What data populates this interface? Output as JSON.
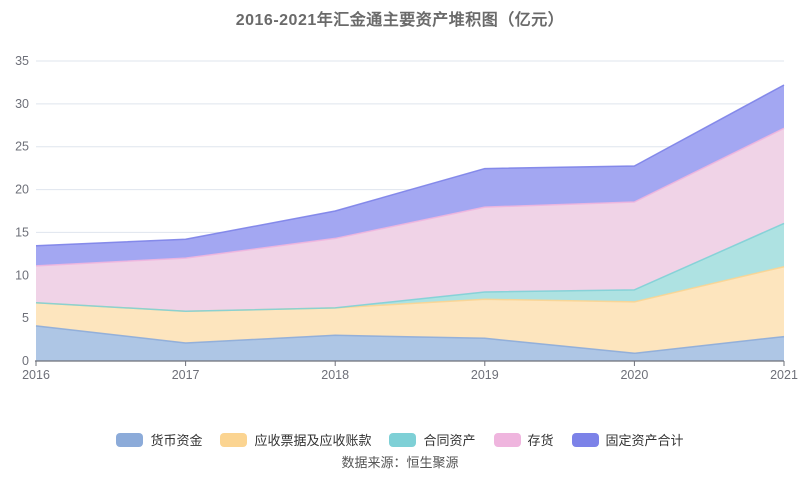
{
  "title": "2016-2021年汇金通主要资产堆积图（亿元）",
  "source": "数据来源：恒生聚源",
  "chart_data": {
    "type": "area",
    "stacked": true,
    "title": "2016-2021年汇金通主要资产堆积图（亿元）",
    "x": [
      2016,
      2017,
      2018,
      2019,
      2020,
      2021
    ],
    "x_labels": [
      "2016",
      "2017",
      "2018",
      "2019",
      "2020",
      "2021"
    ],
    "series": [
      {
        "name": "货币资金",
        "values": [
          4.1,
          2.1,
          3.0,
          2.65,
          0.9,
          2.85
        ],
        "color": "#8CABD9",
        "fill": "#AEC6E5"
      },
      {
        "name": "应收票据及应收账款",
        "values": [
          2.7,
          3.7,
          3.2,
          4.55,
          6.0,
          8.15
        ],
        "color": "#FBD491",
        "fill": "#FDE5BE"
      },
      {
        "name": "合同资产",
        "values": [
          0.0,
          0.0,
          0.0,
          0.85,
          1.4,
          5.05
        ],
        "color": "#7ED0D6",
        "fill": "#AEE2E2"
      },
      {
        "name": "存货",
        "values": [
          4.3,
          6.2,
          8.1,
          9.9,
          10.25,
          11.1
        ],
        "color": "#EFB5DE",
        "fill": "#F0D3E7"
      },
      {
        "name": "固定资产合计",
        "values": [
          2.35,
          2.2,
          3.2,
          4.5,
          4.2,
          5.05
        ],
        "color": "#7C82E8",
        "fill": "#A3A7F2"
      }
    ],
    "stack_totals": [
      13.45,
      14.2,
      17.5,
      22.45,
      22.75,
      32.2
    ],
    "ylim": [
      0,
      35
    ],
    "y_ticks": [
      0,
      5,
      10,
      15,
      20,
      25,
      30,
      35
    ],
    "xlabel": "",
    "ylabel": "",
    "grid": true,
    "legend_position": "bottom",
    "colors": {
      "grid_line": "#DFE5EE",
      "axis_line": "#6E7079",
      "tick_label": "#6E7079",
      "title_text": "#6A6A6A",
      "legend_text": "#333333",
      "source_text": "#555555",
      "background": "#FFFFFF"
    }
  }
}
